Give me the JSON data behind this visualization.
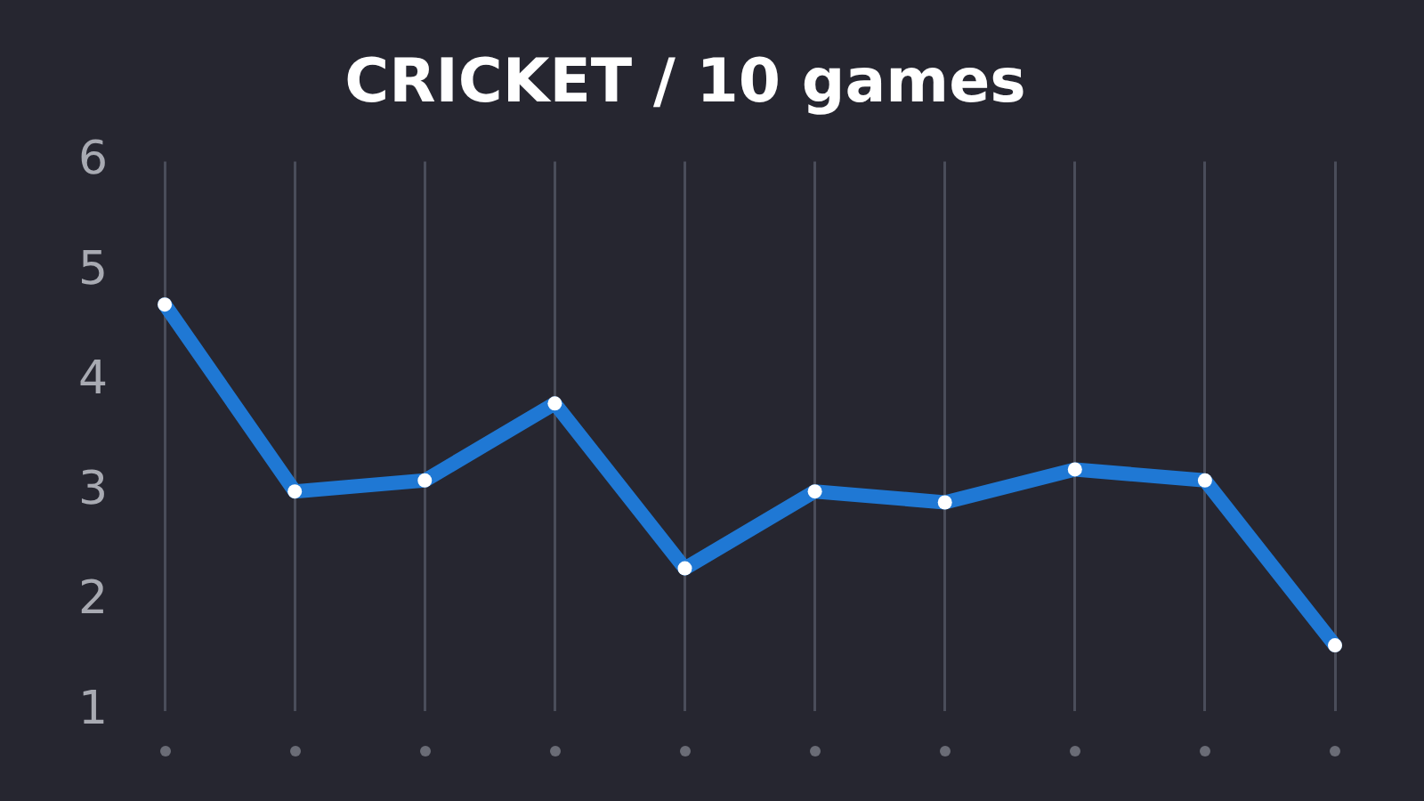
{
  "chart_data": {
    "type": "line",
    "title": "CRICKET / 10 games",
    "categories": [
      null,
      null,
      null,
      null,
      null,
      null,
      null,
      null,
      null,
      null
    ],
    "series": [
      {
        "color": "#1f78d4",
        "values": [
          4.7,
          3.0,
          3.1,
          3.8,
          2.3,
          3.0,
          2.9,
          3.2,
          3.1,
          1.6
        ]
      }
    ],
    "ylim": [
      1,
      6
    ],
    "yticks": [
      1,
      2,
      3,
      4,
      5,
      6
    ],
    "grid": "x",
    "legend": false,
    "marker": "circle",
    "line_style": "solid"
  }
}
